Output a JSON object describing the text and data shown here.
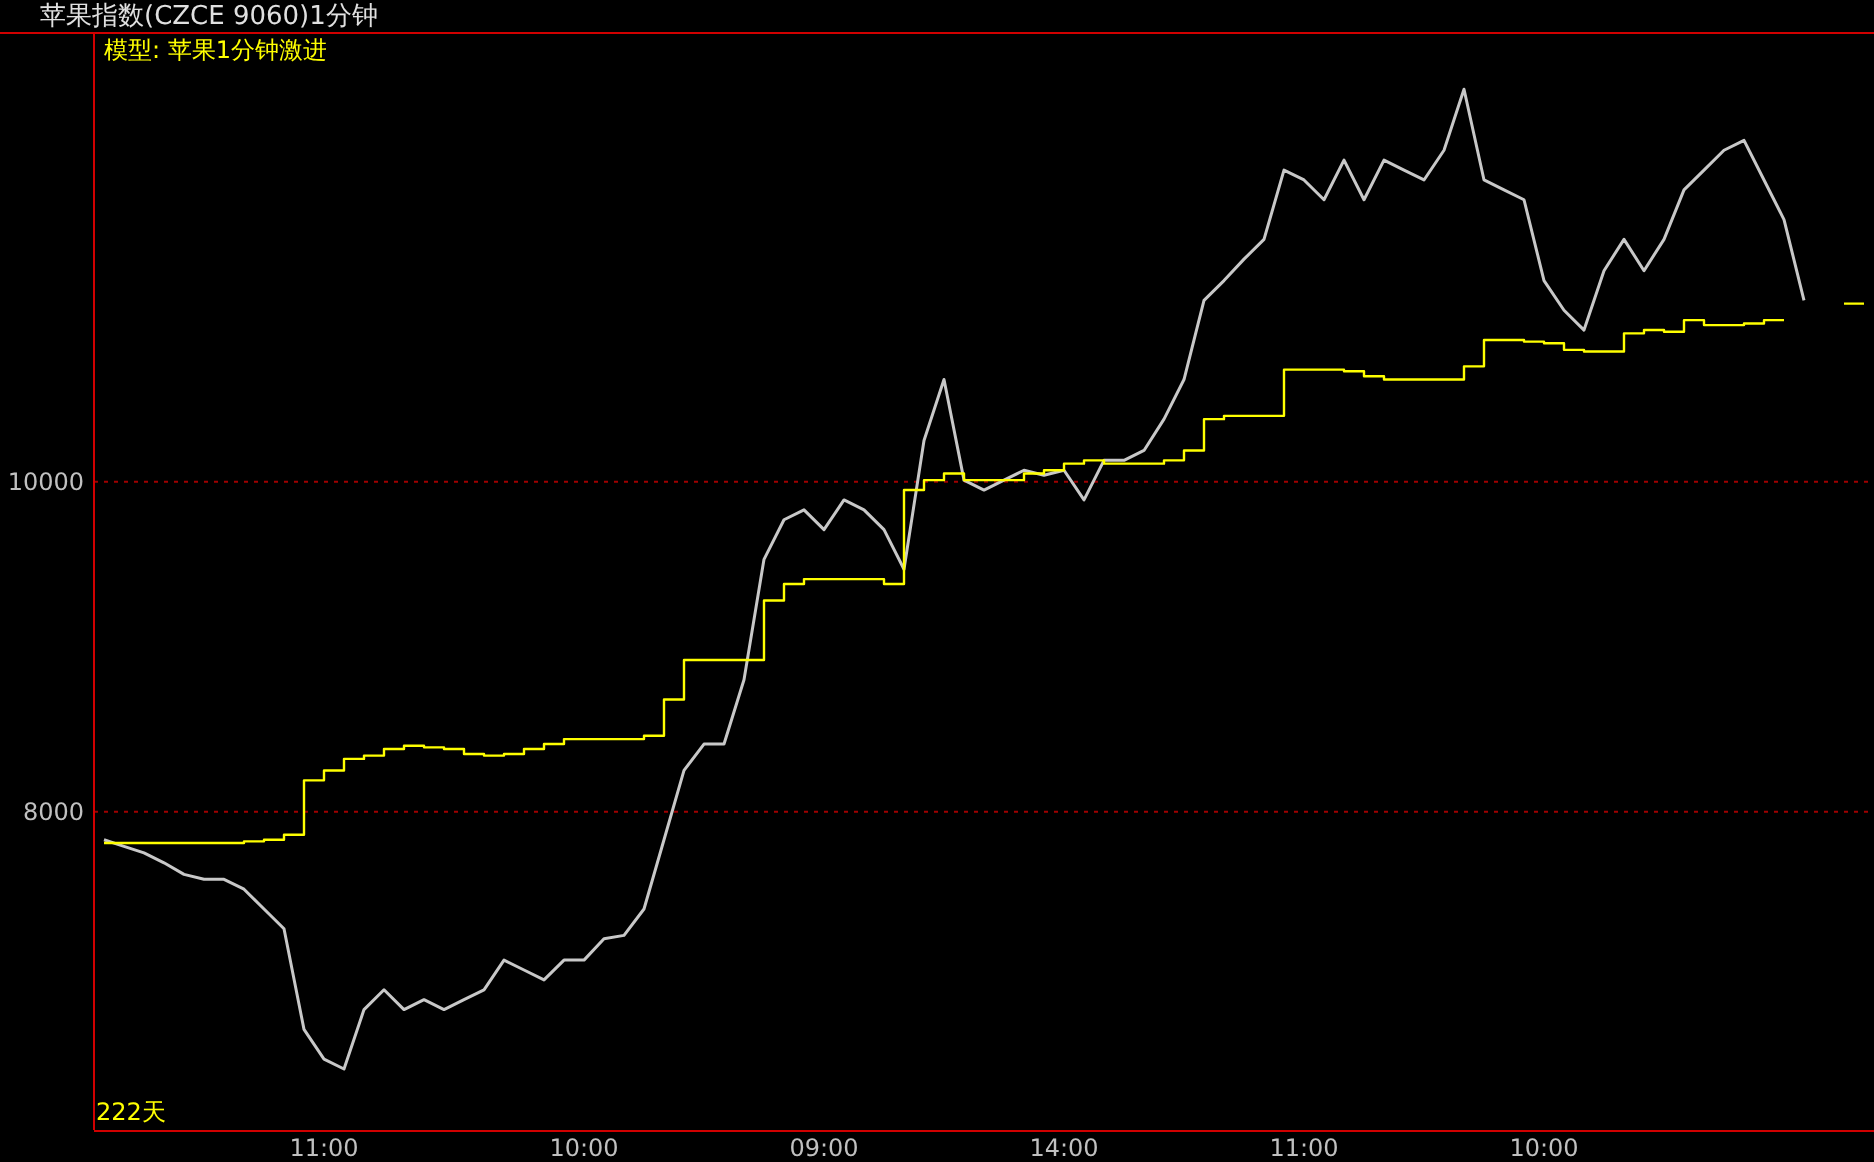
{
  "chart_data": {
    "type": "line",
    "title": "苹果指数(CZCE 9060)1分钟",
    "subtitle": "模型: 苹果1分钟激进",
    "annotations": [
      "222天"
    ],
    "categories": [
      null,
      null,
      null,
      null,
      null,
      null,
      null,
      null,
      null,
      null,
      null,
      "11:00",
      null,
      null,
      null,
      null,
      null,
      null,
      null,
      null,
      null,
      null,
      null,
      null,
      "10:00",
      null,
      null,
      null,
      null,
      null,
      null,
      null,
      null,
      null,
      null,
      null,
      "09:00",
      null,
      null,
      null,
      null,
      null,
      null,
      null,
      null,
      null,
      null,
      null,
      "14:00",
      null,
      null,
      null,
      null,
      null,
      null,
      null,
      null,
      null,
      null,
      null,
      "11:00",
      null,
      null,
      null,
      null,
      null,
      null,
      null,
      null,
      null,
      null,
      null,
      "10:00",
      null,
      null,
      null,
      null,
      null,
      null,
      null,
      null,
      null,
      null,
      null,
      null,
      null,
      null,
      null,
      null
    ],
    "series": [
      {
        "color": "#c8c8c8",
        "values": [
          7830,
          7790,
          7750,
          7690,
          7620,
          7590,
          7590,
          7530,
          7410,
          7290,
          6680,
          6500,
          6440,
          6800,
          6920,
          6800,
          6860,
          6800,
          6860,
          6920,
          7100,
          7040,
          6980,
          7100,
          7100,
          7230,
          7250,
          7410,
          7830,
          8250,
          8410,
          8410,
          8800,
          9530,
          9770,
          9830,
          9710,
          9890,
          9830,
          9710,
          9470,
          10250,
          10620,
          10010,
          9950,
          10010,
          10070,
          10040,
          10070,
          9890,
          10130,
          10130,
          10190,
          10380,
          10620,
          11100,
          11220,
          11350,
          11470,
          11890,
          11830,
          11710,
          11950,
          11710,
          11950,
          11890,
          11830,
          12010,
          12380,
          11830,
          11770,
          11710,
          11220,
          11040,
          10920,
          11280,
          11470,
          11280,
          11470,
          11770,
          11890,
          12010,
          12070,
          11830,
          11590,
          11100,
          null,
          null,
          null
        ]
      },
      {
        "type": "step",
        "color": "#ffff00",
        "values": [
          7810,
          7810,
          7810,
          7810,
          7810,
          7810,
          7810,
          7820,
          7830,
          7860,
          8190,
          8250,
          8320,
          8340,
          8380,
          8400,
          8390,
          8380,
          8350,
          8340,
          8350,
          8380,
          8410,
          8440,
          8440,
          8440,
          8440,
          8460,
          8680,
          8920,
          8920,
          8920,
          8920,
          9280,
          9380,
          9410,
          9410,
          9410,
          9410,
          9380,
          9950,
          10010,
          10050,
          10010,
          10010,
          10010,
          10050,
          10070,
          10110,
          10130,
          10110,
          10110,
          10110,
          10130,
          10190,
          10380,
          10400,
          10400,
          10400,
          10680,
          10680,
          10680,
          10670,
          10640,
          10620,
          10620,
          10620,
          10620,
          10700,
          10860,
          10860,
          10850,
          10840,
          10800,
          10790,
          10790,
          10900,
          10920,
          10910,
          10980,
          10950,
          10950,
          10960,
          10980,
          10980,
          null,
          null,
          11080,
          11080
        ]
      }
    ],
    "ylim": [
      6070,
      12715
    ],
    "yticks": [
      8000,
      10000
    ],
    "grid": "y"
  }
}
